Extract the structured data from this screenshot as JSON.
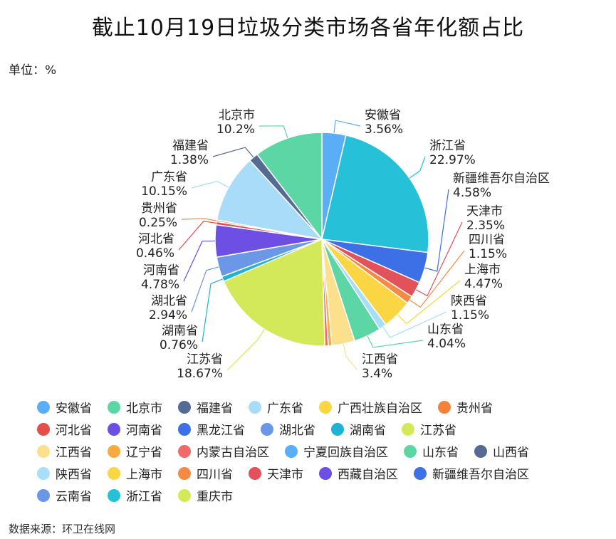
{
  "title": "截止10月19日垃圾分类市场各省年化额占比",
  "unit": "单位：%",
  "source": "数据来源：环卫在线网",
  "chart_data": {
    "type": "pie",
    "slices": [
      {
        "name": "安徽省",
        "value": 3.56,
        "label": "3.56%",
        "color": "#5aaef6"
      },
      {
        "name": "浙江省",
        "value": 22.97,
        "label": "22.97%",
        "color": "#26c0d8"
      },
      {
        "name": "新疆维吾尔自治区",
        "value": 4.58,
        "label": "4.58%",
        "color": "#3d6fe6"
      },
      {
        "name": "天津市",
        "value": 2.35,
        "label": "2.35%",
        "color": "#e2525a"
      },
      {
        "name": "四川省",
        "value": 1.15,
        "label": "1.15%",
        "color": "#f58a44"
      },
      {
        "name": "上海市",
        "value": 4.47,
        "label": "4.47%",
        "color": "#fad644"
      },
      {
        "name": "陕西省",
        "value": 1.15,
        "label": "1.15%",
        "color": "#a9def8"
      },
      {
        "name": "山东省",
        "value": 4.04,
        "label": "4.04%",
        "color": "#5dd6a6"
      },
      {
        "name": "江西省",
        "value": 3.4,
        "label": "3.4%",
        "color": "#fde08c"
      },
      {
        "name": "辽宁省",
        "value": 0.55,
        "label": "",
        "color": "#f8aa3e"
      },
      {
        "name": "内蒙古自治区",
        "value": 0.5,
        "label": "",
        "color": "#f06a6a"
      },
      {
        "name": "江苏省",
        "value": 18.67,
        "label": "18.67%",
        "color": "#d4e95a"
      },
      {
        "name": "湖南省",
        "value": 0.76,
        "label": "0.76%",
        "color": "#1fb3d3"
      },
      {
        "name": "湖北省",
        "value": 2.94,
        "label": "2.94%",
        "color": "#6a98e6"
      },
      {
        "name": "河南省",
        "value": 4.78,
        "label": "4.78%",
        "color": "#6d4fe3"
      },
      {
        "name": "河北省",
        "value": 0.46,
        "label": "0.46%",
        "color": "#e3504a"
      },
      {
        "name": "贵州省",
        "value": 0.25,
        "label": "0.25%",
        "color": "#f5823a"
      },
      {
        "name": "广东省",
        "value": 10.15,
        "label": "10.15%",
        "color": "#a8dcf8"
      },
      {
        "name": "福建省",
        "value": 1.38,
        "label": "1.38%",
        "color": "#566b94"
      },
      {
        "name": "北京市",
        "value": 10.2,
        "label": "10.2%",
        "color": "#5dd6a6"
      }
    ]
  },
  "legend": [
    {
      "name": "安徽省",
      "color": "#5aaef6"
    },
    {
      "name": "北京市",
      "color": "#5dd6a6"
    },
    {
      "name": "福建省",
      "color": "#566b94"
    },
    {
      "name": "广东省",
      "color": "#a8dcf8"
    },
    {
      "name": "广西壮族自治区",
      "color": "#fad644"
    },
    {
      "name": "贵州省",
      "color": "#f5823a"
    },
    {
      "name": "河北省",
      "color": "#e3504a"
    },
    {
      "name": "河南省",
      "color": "#6d4fe3"
    },
    {
      "name": "黑龙江省",
      "color": "#3d6fe6"
    },
    {
      "name": "湖北省",
      "color": "#6a98e6"
    },
    {
      "name": "湖南省",
      "color": "#1fb3d3"
    },
    {
      "name": "江苏省",
      "color": "#d4e95a"
    },
    {
      "name": "江西省",
      "color": "#fde08c"
    },
    {
      "name": "辽宁省",
      "color": "#f8aa3e"
    },
    {
      "name": "内蒙古自治区",
      "color": "#f06a6a"
    },
    {
      "name": "宁夏回族自治区",
      "color": "#5aaef6"
    },
    {
      "name": "山东省",
      "color": "#5dd6a6"
    },
    {
      "name": "山西省",
      "color": "#566b94"
    },
    {
      "name": "陕西省",
      "color": "#a9def8"
    },
    {
      "name": "上海市",
      "color": "#fad644"
    },
    {
      "name": "四川省",
      "color": "#f58a44"
    },
    {
      "name": "天津市",
      "color": "#e2525a"
    },
    {
      "name": "西藏自治区",
      "color": "#6d4fe3"
    },
    {
      "name": "新疆维吾尔自治区",
      "color": "#3d6fe6"
    },
    {
      "name": "云南省",
      "color": "#6a98e6"
    },
    {
      "name": "浙江省",
      "color": "#26c0d8"
    },
    {
      "name": "重庆市",
      "color": "#d4e95a"
    }
  ]
}
